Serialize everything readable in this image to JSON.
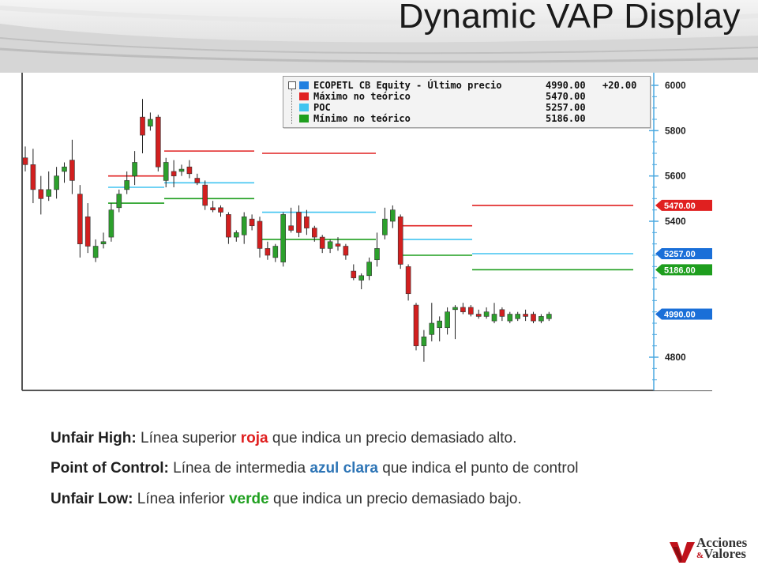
{
  "slide": {
    "title": "Dynamic VAP Display"
  },
  "colors": {
    "up": "#2ca02c",
    "down": "#d21f1f",
    "red_line": "#e02020",
    "blue_line": "#40c4f0",
    "green_line": "#1e9e1e",
    "axis": "#4aa8e0"
  },
  "legend": {
    "rows": [
      {
        "name": "ECOPETL CB Equity - Último precio",
        "value": "4990.00",
        "change": "+20.00",
        "color": "#1f7fe0"
      },
      {
        "name": "Máximo no teórico",
        "value": "5470.00",
        "change": "",
        "color": "#e02020"
      },
      {
        "name": "POC",
        "value": "5257.00",
        "change": "",
        "color": "#40c4f0"
      },
      {
        "name": "Mínimo no teórico",
        "value": "5186.00",
        "change": "",
        "color": "#1e9e1e"
      }
    ]
  },
  "chart_data": {
    "type": "candlestick",
    "y_axis": {
      "ylim": [
        4600,
        6100
      ],
      "ticks": [
        6000,
        5800,
        5600,
        5400,
        4800
      ]
    },
    "tags": [
      {
        "label": "5470.00",
        "value": 5470,
        "color": "#e02020"
      },
      {
        "label": "5257.00",
        "value": 5257,
        "color": "#1a6fd8"
      },
      {
        "label": "5186.00",
        "value": 5186,
        "color": "#1e9e1e"
      },
      {
        "label": "4990.00",
        "value": 4990,
        "color": "#1a6fd8"
      }
    ],
    "candles": [
      {
        "o": 5680,
        "h": 5730,
        "l": 5620,
        "c": 5650
      },
      {
        "o": 5650,
        "h": 5720,
        "l": 5480,
        "c": 5540
      },
      {
        "o": 5540,
        "h": 5600,
        "l": 5430,
        "c": 5500
      },
      {
        "o": 5510,
        "h": 5620,
        "l": 5490,
        "c": 5540
      },
      {
        "o": 5540,
        "h": 5640,
        "l": 5500,
        "c": 5600
      },
      {
        "o": 5620,
        "h": 5660,
        "l": 5570,
        "c": 5640
      },
      {
        "o": 5670,
        "h": 5760,
        "l": 5520,
        "c": 5580
      },
      {
        "o": 5520,
        "h": 5560,
        "l": 5240,
        "c": 5300
      },
      {
        "o": 5420,
        "h": 5480,
        "l": 5260,
        "c": 5290
      },
      {
        "o": 5240,
        "h": 5320,
        "l": 5220,
        "c": 5290
      },
      {
        "o": 5300,
        "h": 5350,
        "l": 5280,
        "c": 5310
      },
      {
        "o": 5330,
        "h": 5480,
        "l": 5310,
        "c": 5450
      },
      {
        "o": 5460,
        "h": 5540,
        "l": 5440,
        "c": 5520
      },
      {
        "o": 5540,
        "h": 5620,
        "l": 5520,
        "c": 5580
      },
      {
        "o": 5600,
        "h": 5710,
        "l": 5560,
        "c": 5660
      },
      {
        "o": 5860,
        "h": 5940,
        "l": 5700,
        "c": 5780
      },
      {
        "o": 5820,
        "h": 5880,
        "l": 5800,
        "c": 5850
      },
      {
        "o": 5860,
        "h": 5870,
        "l": 5620,
        "c": 5640
      },
      {
        "o": 5580,
        "h": 5680,
        "l": 5550,
        "c": 5660
      },
      {
        "o": 5620,
        "h": 5670,
        "l": 5550,
        "c": 5600
      },
      {
        "o": 5620,
        "h": 5650,
        "l": 5600,
        "c": 5630
      },
      {
        "o": 5640,
        "h": 5670,
        "l": 5590,
        "c": 5610
      },
      {
        "o": 5590,
        "h": 5610,
        "l": 5560,
        "c": 5570
      },
      {
        "o": 5560,
        "h": 5580,
        "l": 5450,
        "c": 5470
      },
      {
        "o": 5460,
        "h": 5490,
        "l": 5440,
        "c": 5450
      },
      {
        "o": 5460,
        "h": 5470,
        "l": 5420,
        "c": 5440
      },
      {
        "o": 5430,
        "h": 5440,
        "l": 5300,
        "c": 5330
      },
      {
        "o": 5330,
        "h": 5360,
        "l": 5310,
        "c": 5350
      },
      {
        "o": 5340,
        "h": 5440,
        "l": 5300,
        "c": 5420
      },
      {
        "o": 5410,
        "h": 5430,
        "l": 5360,
        "c": 5380
      },
      {
        "o": 5400,
        "h": 5420,
        "l": 5240,
        "c": 5280
      },
      {
        "o": 5280,
        "h": 5310,
        "l": 5230,
        "c": 5250
      },
      {
        "o": 5240,
        "h": 5300,
        "l": 5220,
        "c": 5290
      },
      {
        "o": 5220,
        "h": 5440,
        "l": 5200,
        "c": 5430
      },
      {
        "o": 5380,
        "h": 5460,
        "l": 5350,
        "c": 5360
      },
      {
        "o": 5440,
        "h": 5470,
        "l": 5330,
        "c": 5350
      },
      {
        "o": 5420,
        "h": 5450,
        "l": 5340,
        "c": 5370
      },
      {
        "o": 5370,
        "h": 5380,
        "l": 5310,
        "c": 5330
      },
      {
        "o": 5330,
        "h": 5340,
        "l": 5260,
        "c": 5280
      },
      {
        "o": 5280,
        "h": 5320,
        "l": 5260,
        "c": 5310
      },
      {
        "o": 5300,
        "h": 5330,
        "l": 5270,
        "c": 5290
      },
      {
        "o": 5290,
        "h": 5300,
        "l": 5230,
        "c": 5250
      },
      {
        "o": 5180,
        "h": 5210,
        "l": 5140,
        "c": 5150
      },
      {
        "o": 5140,
        "h": 5170,
        "l": 5100,
        "c": 5160
      },
      {
        "o": 5160,
        "h": 5240,
        "l": 5140,
        "c": 5220
      },
      {
        "o": 5230,
        "h": 5350,
        "l": 5200,
        "c": 5280
      },
      {
        "o": 5340,
        "h": 5460,
        "l": 5320,
        "c": 5410
      },
      {
        "o": 5400,
        "h": 5470,
        "l": 5370,
        "c": 5450
      },
      {
        "o": 5420,
        "h": 5430,
        "l": 5190,
        "c": 5210
      },
      {
        "o": 5200,
        "h": 5210,
        "l": 5050,
        "c": 5080
      },
      {
        "o": 5030,
        "h": 5040,
        "l": 4830,
        "c": 4850
      },
      {
        "o": 4850,
        "h": 4920,
        "l": 4780,
        "c": 4890
      },
      {
        "o": 4900,
        "h": 5040,
        "l": 4870,
        "c": 4950
      },
      {
        "o": 4930,
        "h": 4980,
        "l": 4870,
        "c": 4960
      },
      {
        "o": 4930,
        "h": 5020,
        "l": 4900,
        "c": 5000
      },
      {
        "o": 5010,
        "h": 5030,
        "l": 4880,
        "c": 5020
      },
      {
        "o": 5020,
        "h": 5040,
        "l": 4990,
        "c": 5000
      },
      {
        "o": 5020,
        "h": 5030,
        "l": 4980,
        "c": 4990
      },
      {
        "o": 4990,
        "h": 5010,
        "l": 4970,
        "c": 4980
      },
      {
        "o": 4980,
        "h": 5020,
        "l": 4970,
        "c": 5000
      },
      {
        "o": 4960,
        "h": 5040,
        "l": 4950,
        "c": 4990
      },
      {
        "o": 5010,
        "h": 5020,
        "l": 4960,
        "c": 4980
      },
      {
        "o": 4960,
        "h": 5000,
        "l": 4950,
        "c": 4990
      },
      {
        "o": 4970,
        "h": 5000,
        "l": 4960,
        "c": 4990
      },
      {
        "o": 4990,
        "h": 5010,
        "l": 4960,
        "c": 4980
      },
      {
        "o": 4990,
        "h": 5000,
        "l": 4950,
        "c": 4960
      },
      {
        "o": 4960,
        "h": 4990,
        "l": 4950,
        "c": 4980
      },
      {
        "o": 4970,
        "h": 5000,
        "l": 4960,
        "c": 4990
      }
    ],
    "vap_segments": [
      {
        "red": 5600,
        "blue": 5550,
        "green": 5480
      },
      {
        "red": 5710,
        "blue": 5570,
        "green": 5500
      },
      {
        "red": 5700,
        "blue": 5440,
        "green": 5320
      },
      {
        "red": 5380,
        "blue": 5320,
        "green": 5250
      },
      {
        "red": 5470,
        "blue": 5257,
        "green": 5186
      }
    ]
  },
  "description": {
    "lines": [
      {
        "label": "Unfair High:",
        "before": " Línea superior ",
        "keyword": "roja",
        "after": " que indica un precio demasiado alto.",
        "keyword_color": "#e02020"
      },
      {
        "label": "Point of Control:",
        "before": " Línea de intermedia ",
        "keyword": "azul clara",
        "after": " que indica el punto de control",
        "keyword_color": "#2e75b6"
      },
      {
        "label": "Unfair Low:",
        "before": " Línea inferior ",
        "keyword": "verde",
        "after": " que indica un precio demasiado bajo.",
        "keyword_color": "#20a020"
      }
    ]
  },
  "logo": {
    "line1": "Acciones",
    "amp": "&",
    "line2": "Valores"
  }
}
